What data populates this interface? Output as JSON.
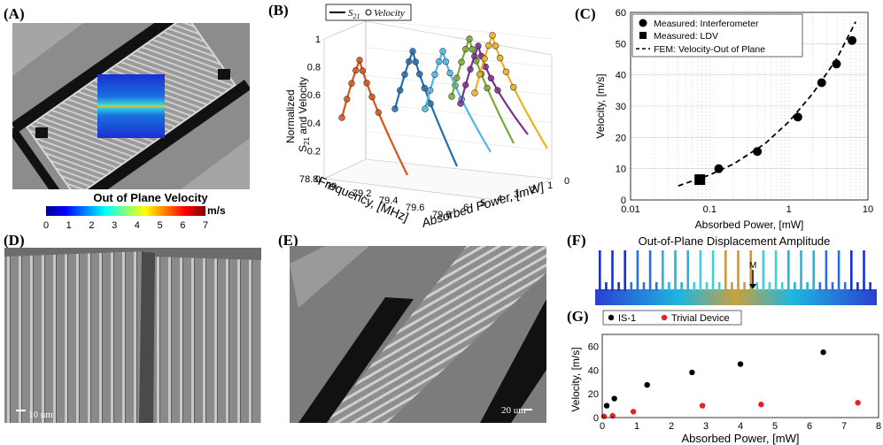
{
  "panels": {
    "a": {
      "label": "(A)",
      "colorbar_title": "Out of Plane Velocity",
      "colorbar_ticks": [
        "0",
        "1",
        "2",
        "3",
        "4",
        "5",
        "6",
        "7"
      ],
      "colorbar_unit": "m/s"
    },
    "b": {
      "label": "(B)",
      "legend_line": "S",
      "legend_line_sub": "21",
      "legend_marker": "Velocity",
      "zlabel_1": "Normalized",
      "zlabel_2": "S",
      "zlabel_2_sub": "21",
      "zlabel_3": " and Velocity",
      "xlabel": "Frequency, [MHz]",
      "ylabel": "Absorbed Power, [mW]",
      "z_ticks": [
        "0",
        "0.2",
        "0.4",
        "0.6",
        "0.8",
        "1"
      ],
      "freq_ticks": [
        "78.8",
        "79",
        "79.2",
        "79.4",
        "79.6",
        "79.8"
      ],
      "power_ticks": [
        "6",
        "5",
        "4",
        "3",
        "2",
        "1",
        "0"
      ]
    },
    "c": {
      "label": "(C)"
    },
    "d": {
      "label": "(D)",
      "scalebar": "10 um"
    },
    "e": {
      "label": "(E)",
      "scalebar": "20 um"
    },
    "f": {
      "label": "(F)",
      "title": "Out-of-Plane Displacement Amplitude",
      "marker": "M"
    },
    "g": {
      "label": "(G)"
    }
  },
  "chart_data": [
    {
      "id": "B",
      "type": "line",
      "xlabel": "Frequency, [MHz]",
      "ylabel": "Absorbed Power, [mW]",
      "zlabel": "Normalized S21 and Velocity",
      "zlim": [
        0,
        1
      ],
      "series": [
        {
          "color": "#d95319",
          "peak_frequency": 79.05,
          "power": 0.1
        },
        {
          "color": "#1f6fb4",
          "peak_frequency": 79.1,
          "power": 0.5
        },
        {
          "color": "#4db7e6",
          "peak_frequency": 79.2,
          "power": 1.3
        },
        {
          "color": "#77ac30",
          "peak_frequency": 79.3,
          "power": 2.5
        },
        {
          "color": "#7e2f8e",
          "peak_frequency": 79.35,
          "power": 4.0
        },
        {
          "color": "#edb120",
          "peak_frequency": 79.4,
          "power": 6.3
        }
      ]
    },
    {
      "id": "C",
      "type": "scatter",
      "xlabel": "Absorbed Power, [mW]",
      "ylabel": "Velocity, [m/s]",
      "xscale": "log",
      "xlim": [
        0.01,
        10
      ],
      "ylim": [
        0,
        60
      ],
      "x_ticks": [
        "0.01",
        "0.1",
        "1",
        "10"
      ],
      "y_ticks": [
        "0",
        "10",
        "20",
        "30",
        "40",
        "50",
        "60"
      ],
      "grid": true,
      "legend_position": "top-left",
      "series": [
        {
          "name": "Measured: Interferometer",
          "marker": "circle",
          "x": [
            0.13,
            0.4,
            1.3,
            2.6,
            4.0,
            6.3
          ],
          "y": [
            10,
            15.5,
            26.5,
            37.5,
            43.5,
            51
          ]
        },
        {
          "name": "Measured: LDV",
          "marker": "square",
          "x": [
            0.075
          ],
          "y": [
            6.5
          ]
        },
        {
          "name": "FEM: Velocity-Out of Plane",
          "marker": "dashed-line",
          "x": [
            0.04,
            0.1,
            0.2,
            0.5,
            1,
            2,
            4,
            7
          ],
          "y": [
            4.5,
            8,
            11.5,
            18,
            25,
            34,
            45,
            57
          ]
        }
      ]
    },
    {
      "id": "G",
      "type": "scatter",
      "xlabel": "Absorbed Power, [mW]",
      "ylabel": "Velocity, [m/s]",
      "xlim": [
        0,
        8
      ],
      "ylim": [
        0,
        70
      ],
      "x_ticks": [
        "0",
        "1",
        "2",
        "3",
        "4",
        "5",
        "6",
        "7",
        "8"
      ],
      "y_ticks": [
        "0",
        "20",
        "40",
        "60"
      ],
      "legend_position": "top-left",
      "series": [
        {
          "name": "IS-1",
          "color": "#000000",
          "x": [
            0.13,
            0.35,
            1.3,
            2.6,
            4.0,
            6.4
          ],
          "y": [
            10,
            16,
            27.5,
            38,
            45,
            55
          ]
        },
        {
          "name": "Trivial Device",
          "color": "#e8211e",
          "x": [
            0.05,
            0.3,
            0.9,
            2.9,
            4.6,
            7.4
          ],
          "y": [
            1,
            1.5,
            5,
            10,
            11,
            12.5
          ]
        }
      ]
    }
  ]
}
